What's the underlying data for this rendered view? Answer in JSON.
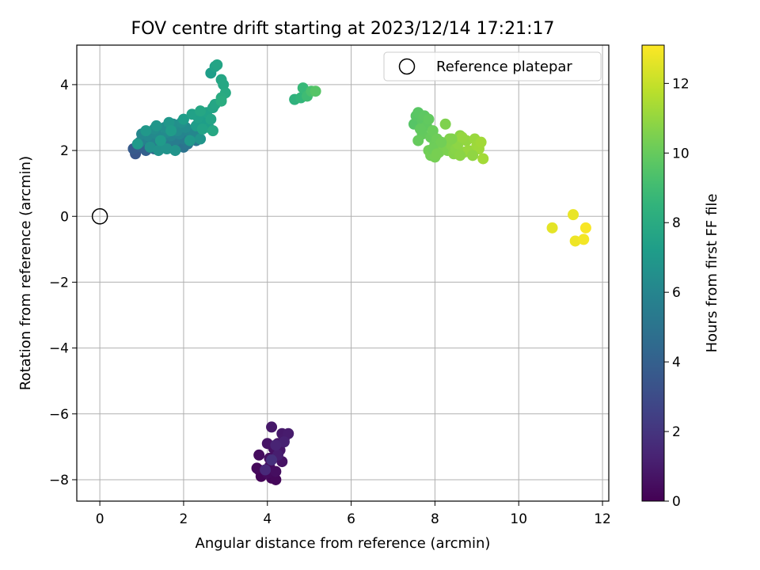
{
  "chart_data": {
    "type": "scatter",
    "title": "FOV centre drift starting at 2023/12/14 17:21:17",
    "xlabel": "Angular distance from reference (arcmin)",
    "ylabel": "Rotation from reference (arcmin)",
    "xlim": [
      -0.55,
      12.15
    ],
    "ylim": [
      -8.65,
      5.2
    ],
    "xticks": [
      0,
      2,
      4,
      6,
      8,
      10,
      12
    ],
    "yticks": [
      -8,
      -6,
      -4,
      -2,
      0,
      2,
      4
    ],
    "grid": true,
    "legend": {
      "placement": "top-right",
      "entries": [
        "Reference platepar"
      ]
    },
    "reference_point": {
      "x": 0,
      "y": 0,
      "label": "Reference platepar"
    },
    "colorbar": {
      "label": "Hours from first FF file",
      "colormap": "viridis",
      "range": [
        0,
        13.1
      ],
      "ticks": [
        0,
        2,
        4,
        6,
        8,
        10,
        12
      ]
    },
    "series": [
      {
        "points": [
          [
            3.8,
            -7.7
          ],
          [
            3.85,
            -7.9
          ],
          [
            4.1,
            -7.95
          ],
          [
            4.2,
            -8.0
          ],
          [
            3.75,
            -7.65
          ],
          [
            4.0,
            -7.8
          ],
          [
            3.8,
            -7.25
          ],
          [
            4.05,
            -7.6
          ],
          [
            4.2,
            -7.75
          ],
          [
            4.05,
            -7.35
          ],
          [
            4.15,
            -7.05
          ],
          [
            4.35,
            -7.45
          ],
          [
            4.0,
            -6.9
          ],
          [
            4.25,
            -6.9
          ],
          [
            4.3,
            -7.1
          ],
          [
            4.1,
            -6.4
          ],
          [
            4.35,
            -6.6
          ],
          [
            4.4,
            -6.75
          ],
          [
            4.5,
            -6.6
          ],
          [
            4.25,
            -7.25
          ],
          [
            4.4,
            -6.85
          ],
          [
            4.2,
            -6.95
          ],
          [
            3.95,
            -7.7
          ],
          [
            4.1,
            -7.4
          ]
        ],
        "hours": [
          0.1,
          0.15,
          0.2,
          0.25,
          0.3,
          0.35,
          0.4,
          0.45,
          0.5,
          0.55,
          0.6,
          0.65,
          0.7,
          0.75,
          0.8,
          0.85,
          0.9,
          0.95,
          1.0,
          1.1,
          1.2,
          1.3,
          1.5,
          1.8
        ]
      },
      {
        "points": [
          [
            0.85,
            1.9
          ],
          [
            0.8,
            2.05
          ],
          [
            1.0,
            2.1
          ],
          [
            1.1,
            2.0
          ],
          [
            1.3,
            2.05
          ],
          [
            1.5,
            2.1
          ],
          [
            1.7,
            2.15
          ],
          [
            1.9,
            2.2
          ],
          [
            2.0,
            2.1
          ],
          [
            2.1,
            2.2
          ],
          [
            2.3,
            2.3
          ],
          [
            2.2,
            2.4
          ],
          [
            2.0,
            2.35
          ],
          [
            1.8,
            2.3
          ],
          [
            1.6,
            2.25
          ],
          [
            1.4,
            2.2
          ],
          [
            1.2,
            2.2
          ],
          [
            0.95,
            2.25
          ],
          [
            1.05,
            2.35
          ],
          [
            1.25,
            2.35
          ],
          [
            1.5,
            2.4
          ],
          [
            1.7,
            2.45
          ],
          [
            1.9,
            2.5
          ],
          [
            2.1,
            2.6
          ],
          [
            2.25,
            2.5
          ],
          [
            1.0,
            2.5
          ],
          [
            1.15,
            2.45
          ],
          [
            1.35,
            2.5
          ],
          [
            1.6,
            2.55
          ],
          [
            1.85,
            2.6
          ],
          [
            2.05,
            2.7
          ],
          [
            1.3,
            2.65
          ],
          [
            1.55,
            2.7
          ],
          [
            1.75,
            2.8
          ],
          [
            1.95,
            2.85
          ],
          [
            1.2,
            2.1
          ],
          [
            1.4,
            2.0
          ],
          [
            1.6,
            2.05
          ],
          [
            1.8,
            2.0
          ],
          [
            2.4,
            2.35
          ],
          [
            1.35,
            2.75
          ],
          [
            1.65,
            2.85
          ],
          [
            1.1,
            2.6
          ],
          [
            2.15,
            2.3
          ],
          [
            0.9,
            2.2
          ],
          [
            1.45,
            2.3
          ],
          [
            1.7,
            2.6
          ],
          [
            2.0,
            2.95
          ],
          [
            2.3,
            2.75
          ],
          [
            2.5,
            2.9
          ],
          [
            2.6,
            2.7
          ],
          [
            2.35,
            3.0
          ],
          [
            2.2,
            3.1
          ],
          [
            2.55,
            3.15
          ],
          [
            2.45,
            2.65
          ],
          [
            2.65,
            2.95
          ],
          [
            2.7,
            3.3
          ],
          [
            2.75,
            3.4
          ],
          [
            2.4,
            3.2
          ],
          [
            2.7,
            2.6
          ]
        ],
        "hours": [
          3.5,
          3.7,
          3.9,
          4.0,
          4.2,
          4.4,
          4.6,
          4.8,
          5.0,
          5.1,
          5.2,
          5.3,
          5.4,
          5.5,
          5.55,
          5.6,
          5.65,
          5.7,
          5.75,
          5.8,
          5.85,
          5.9,
          5.95,
          6.0,
          6.05,
          6.1,
          6.15,
          6.2,
          6.25,
          6.3,
          6.35,
          6.4,
          6.45,
          6.5,
          6.55,
          6.6,
          6.65,
          6.7,
          6.75,
          6.8,
          6.85,
          6.9,
          6.95,
          7.0,
          7.05,
          7.1,
          7.15,
          7.2,
          7.25,
          7.3,
          7.35,
          7.4,
          7.45,
          7.5,
          7.55,
          7.6,
          7.65,
          7.7,
          7.75,
          7.8
        ]
      },
      {
        "points": [
          [
            2.65,
            4.35
          ],
          [
            2.75,
            4.55
          ],
          [
            2.8,
            4.6
          ],
          [
            2.9,
            4.15
          ],
          [
            2.95,
            4.0
          ],
          [
            3.0,
            3.75
          ],
          [
            2.9,
            3.6
          ],
          [
            2.9,
            3.5
          ],
          [
            4.65,
            3.55
          ],
          [
            4.8,
            3.6
          ],
          [
            4.85,
            3.9
          ],
          [
            4.95,
            3.65
          ],
          [
            5.05,
            3.8
          ],
          [
            5.15,
            3.8
          ]
        ],
        "hours": [
          7.3,
          7.5,
          7.6,
          7.7,
          7.8,
          7.9,
          8.0,
          8.1,
          8.4,
          8.6,
          8.8,
          9.0,
          9.3,
          9.6
        ]
      },
      {
        "points": [
          [
            7.5,
            2.8
          ],
          [
            7.55,
            3.05
          ],
          [
            7.6,
            3.15
          ],
          [
            7.7,
            2.9
          ],
          [
            7.75,
            3.05
          ],
          [
            7.8,
            2.75
          ],
          [
            7.85,
            2.95
          ],
          [
            7.7,
            2.5
          ],
          [
            7.6,
            2.3
          ],
          [
            7.9,
            2.4
          ],
          [
            7.95,
            2.6
          ],
          [
            8.0,
            2.2
          ],
          [
            8.05,
            2.35
          ],
          [
            7.85,
            2.0
          ],
          [
            7.9,
            1.85
          ],
          [
            8.0,
            1.8
          ],
          [
            8.1,
            1.95
          ],
          [
            8.2,
            2.1
          ],
          [
            8.3,
            2.0
          ],
          [
            8.25,
            2.8
          ],
          [
            8.35,
            2.35
          ],
          [
            8.4,
            2.15
          ],
          [
            8.45,
            1.9
          ],
          [
            8.5,
            2.05
          ],
          [
            8.6,
            2.45
          ],
          [
            8.55,
            2.2
          ],
          [
            8.7,
            1.95
          ],
          [
            8.75,
            2.3
          ],
          [
            8.65,
            2.4
          ],
          [
            8.8,
            2.0
          ],
          [
            8.95,
            2.35
          ],
          [
            9.0,
            2.15
          ],
          [
            9.05,
            2.05
          ],
          [
            9.1,
            2.25
          ],
          [
            9.15,
            1.75
          ],
          [
            8.9,
            1.85
          ],
          [
            8.6,
            1.85
          ],
          [
            8.15,
            2.25
          ],
          [
            7.95,
            2.05
          ],
          [
            8.4,
            2.35
          ],
          [
            7.65,
            2.65
          ],
          [
            8.05,
            1.9
          ]
        ],
        "hours": [
          9.6,
          9.65,
          9.7,
          9.75,
          9.8,
          9.85,
          9.9,
          9.95,
          10.0,
          10.05,
          10.1,
          10.15,
          10.2,
          10.25,
          10.3,
          10.35,
          10.4,
          10.45,
          10.5,
          10.55,
          10.6,
          10.65,
          10.7,
          10.75,
          10.8,
          10.85,
          10.9,
          10.95,
          11.0,
          11.05,
          11.1,
          11.15,
          11.2,
          11.25,
          11.3,
          10.9,
          10.8,
          10.3,
          10.2,
          10.6,
          9.9,
          10.4
        ]
      },
      {
        "points": [
          [
            10.8,
            -0.35
          ],
          [
            11.3,
            0.05
          ],
          [
            11.35,
            -0.75
          ],
          [
            11.55,
            -0.7
          ],
          [
            11.6,
            -0.35
          ]
        ],
        "hours": [
          12.6,
          12.7,
          12.8,
          12.9,
          13.0
        ]
      }
    ]
  }
}
